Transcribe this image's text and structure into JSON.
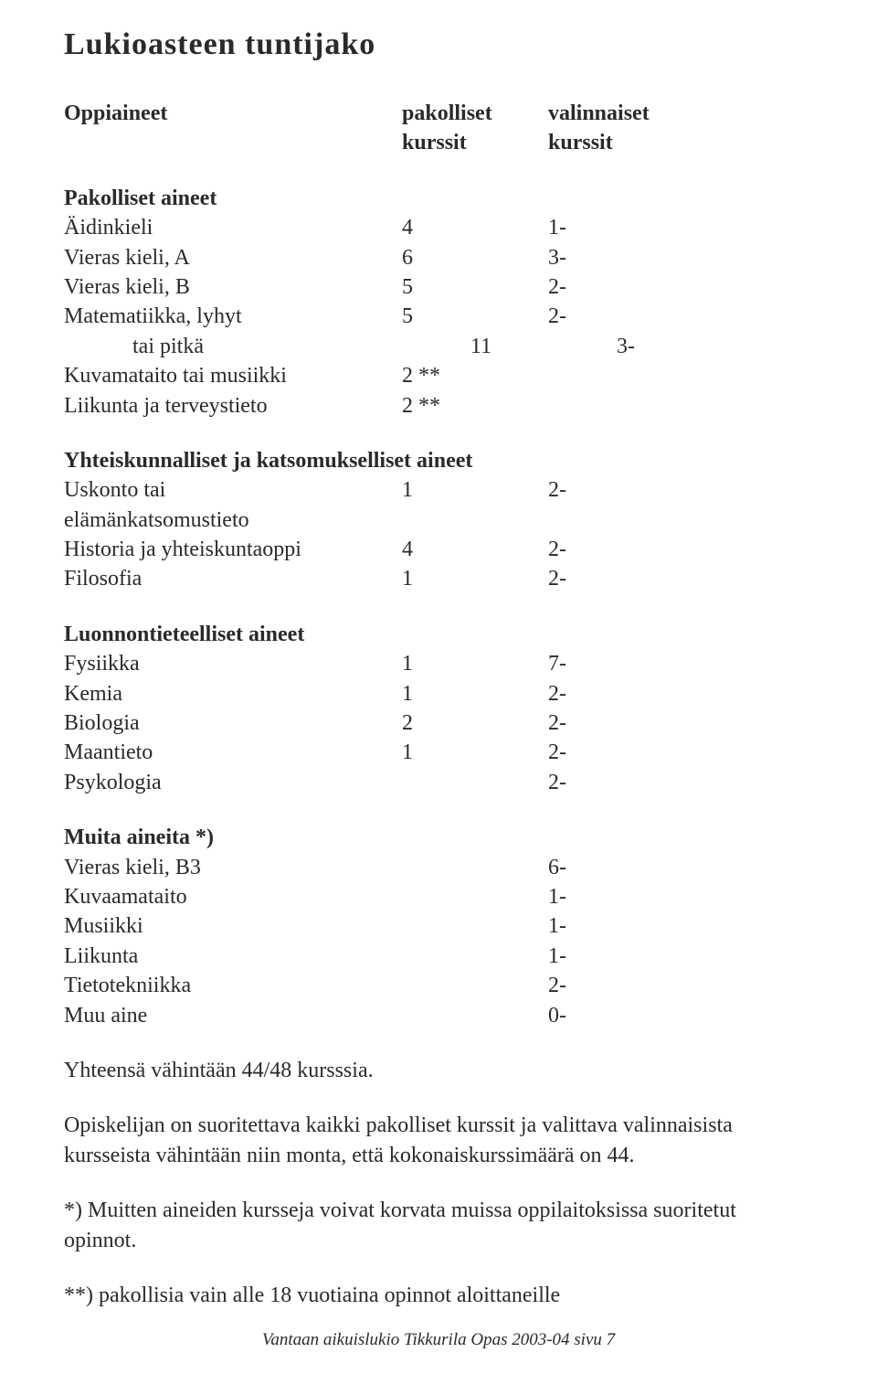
{
  "title": "Lukioasteen tuntijako",
  "header": {
    "col1": "Oppiaineet",
    "col2a": "pakolliset",
    "col2b": "kurssit",
    "col3a": "valinnaiset",
    "col3b": "kurssit"
  },
  "section1": {
    "heading": "Pakolliset aineet",
    "rows": [
      {
        "label": "Äidinkieli",
        "c2": "4",
        "c3": "1-"
      },
      {
        "label": "Vieras kieli, A",
        "c2": "6",
        "c3": "3-"
      },
      {
        "label": "Vieras kieli, B",
        "c2": "5",
        "c3": "2-"
      },
      {
        "label": "Matematiikka, lyhyt",
        "c2": "5",
        "c3": "2-"
      },
      {
        "label": "tai pitkä",
        "indent": true,
        "c2": "11",
        "c3": "3-"
      },
      {
        "label": "Kuvamataito tai musiikki",
        "c2": "2 **",
        "c3": ""
      },
      {
        "label": "Liikunta ja terveystieto",
        "c2": "2 **",
        "c3": ""
      }
    ]
  },
  "section2": {
    "heading": "Yhteiskunnalliset ja katsomukselliset aineet",
    "rows": [
      {
        "label": "Uskonto tai",
        "c2": "1",
        "c3": "2-"
      },
      {
        "label": "elämänkatsomustieto",
        "c2": "",
        "c3": ""
      },
      {
        "label": "Historia ja yhteiskuntaoppi",
        "c2": "4",
        "c3": "2-"
      },
      {
        "label": "Filosofia",
        "c2": "1",
        "c3": "2-"
      }
    ]
  },
  "section3": {
    "heading": "Luonnontieteelliset aineet",
    "rows": [
      {
        "label": "Fysiikka",
        "c2": "1",
        "c3": "7-"
      },
      {
        "label": "Kemia",
        "c2": "1",
        "c3": "2-"
      },
      {
        "label": "Biologia",
        "c2": "2",
        "c3": "2-"
      },
      {
        "label": "Maantieto",
        "c2": "1",
        "c3": "2-"
      },
      {
        "label": "Psykologia",
        "c2": "",
        "c3": "2-"
      }
    ]
  },
  "section4": {
    "heading": "Muita aineita *)",
    "rows": [
      {
        "label": "Vieras kieli, B3",
        "c2": "",
        "c3": "6-"
      },
      {
        "label": "Kuvaamataito",
        "c2": "",
        "c3": "1-"
      },
      {
        "label": "Musiikki",
        "c2": "",
        "c3": "1-"
      },
      {
        "label": "Liikunta",
        "c2": "",
        "c3": "1-"
      },
      {
        "label": "Tietotekniikka",
        "c2": "",
        "c3": "2-"
      },
      {
        "label": "Muu aine",
        "c2": "",
        "c3": "0-"
      }
    ]
  },
  "para1": "Yhteensä vähintään 44/48 kursssia.",
  "para2": "Opiskelijan on suoritettava kaikki pakolliset kurssit ja valittava valinnaisista kursseista vähintään niin monta, että kokonaiskurssimäärä on 44.",
  "para3": "*) Muitten aineiden kursseja voivat korvata muissa oppilaitoksissa suoritetut opinnot.",
  "para4": "**) pakollisia vain alle 18 vuotiaina opinnot aloittaneille",
  "footer": "Vantaan aikuislukio Tikkurila Opas 2003-04 sivu 7"
}
